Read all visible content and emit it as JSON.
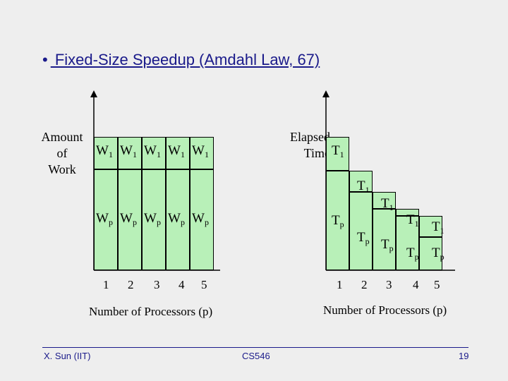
{
  "title": {
    "bullet": "•",
    "text": " Fixed-Size Speedup (Amdahl Law, 67)"
  },
  "left_chart": {
    "ylabel_lines": [
      "Amount",
      "of",
      "Work"
    ],
    "bars": [
      {
        "top_label": "W",
        "top_sub": "1",
        "bottom_label": "W",
        "bottom_sub": "p"
      },
      {
        "top_label": "W",
        "top_sub": "1",
        "bottom_label": "W",
        "bottom_sub": "p"
      },
      {
        "top_label": "W",
        "top_sub": "1",
        "bottom_label": "W",
        "bottom_sub": "p"
      },
      {
        "top_label": "W",
        "top_sub": "1",
        "bottom_label": "W",
        "bottom_sub": "p"
      },
      {
        "top_label": "W",
        "top_sub": "1",
        "bottom_label": "W",
        "bottom_sub": "p"
      }
    ],
    "ticks": [
      "1",
      "2",
      "3",
      "4",
      "5"
    ],
    "xlabel": "Number of Processors (p)"
  },
  "right_chart": {
    "ylabel_lines": [
      "Elapsed",
      "Time"
    ],
    "bars": [
      {
        "top_label": "T",
        "top_sub": "1",
        "bottom_label": "T",
        "bottom_sub": "p"
      },
      {
        "top_label": "T",
        "top_sub": "1",
        "bottom_label": "T",
        "bottom_sub": "p"
      },
      {
        "top_label": "T",
        "top_sub": "1",
        "bottom_label": "T",
        "bottom_sub": "p"
      },
      {
        "top_label": "T",
        "top_sub": "1",
        "bottom_label": "T",
        "bottom_sub": "p"
      },
      {
        "top_label": "T",
        "top_sub": "1",
        "bottom_label": "T",
        "bottom_sub": "p"
      }
    ],
    "ticks": [
      "1",
      "2",
      "3",
      "4",
      "5"
    ],
    "xlabel": "Number of Processors (p)"
  },
  "colors": {
    "bar_fill": "#b8f0b8",
    "title": "#1a1a8a",
    "background": "#eeeeee"
  },
  "footer": {
    "left": "X. Sun (IIT)",
    "center": "CS546",
    "right": "19"
  }
}
